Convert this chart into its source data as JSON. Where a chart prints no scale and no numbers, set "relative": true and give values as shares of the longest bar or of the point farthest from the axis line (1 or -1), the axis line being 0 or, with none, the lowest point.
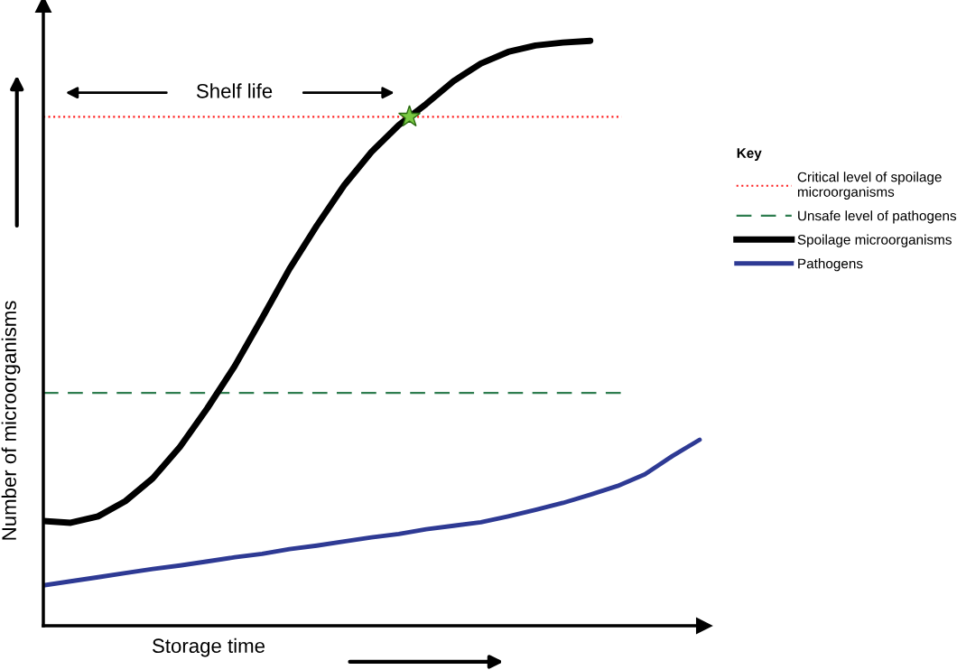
{
  "chart_data": {
    "type": "line",
    "relative": true,
    "xlabel": "Storage time",
    "ylabel": "Number of microorganisms",
    "legend_title": "Key",
    "legend": "right",
    "marker": "none",
    "categories": [
      null,
      null,
      null,
      null,
      null,
      null,
      null,
      null,
      null,
      null,
      null,
      null,
      null,
      null,
      null,
      null,
      null,
      null,
      null,
      null,
      null,
      null,
      null,
      null,
      null
    ],
    "series": [
      {
        "name": "Spoilage microorganisms",
        "color": "#000000",
        "line_style": "solid",
        "values": [
          0.179,
          0.176,
          0.187,
          0.213,
          0.252,
          0.306,
          0.372,
          0.444,
          0.526,
          0.61,
          0.684,
          0.753,
          0.81,
          0.856,
          0.892,
          0.931,
          0.961,
          0.981,
          0.992,
          0.997,
          1.0,
          null,
          null,
          null,
          null
        ]
      },
      {
        "name": "Pathogens",
        "color": "#2e3a94",
        "line_style": "solid",
        "values": [
          0.069,
          0.076,
          0.083,
          0.09,
          0.097,
          0.103,
          0.11,
          0.117,
          0.123,
          0.131,
          0.137,
          0.144,
          0.151,
          0.157,
          0.165,
          0.171,
          0.177,
          0.187,
          0.198,
          0.21,
          0.224,
          0.239,
          0.259,
          0.29,
          0.318
        ]
      }
    ],
    "ref_lines": [
      {
        "axis": "y",
        "value": 0.87,
        "label": "Critical level of spoilage\nmicroorganisms",
        "color": "#ff2020",
        "line_style": "dotted"
      },
      {
        "axis": "y",
        "value": 0.398,
        "label": "Unsafe level of pathogens",
        "color": "#2e7d4f",
        "line_style": "dashed"
      }
    ],
    "annotations": [
      "Shelf life"
    ]
  }
}
